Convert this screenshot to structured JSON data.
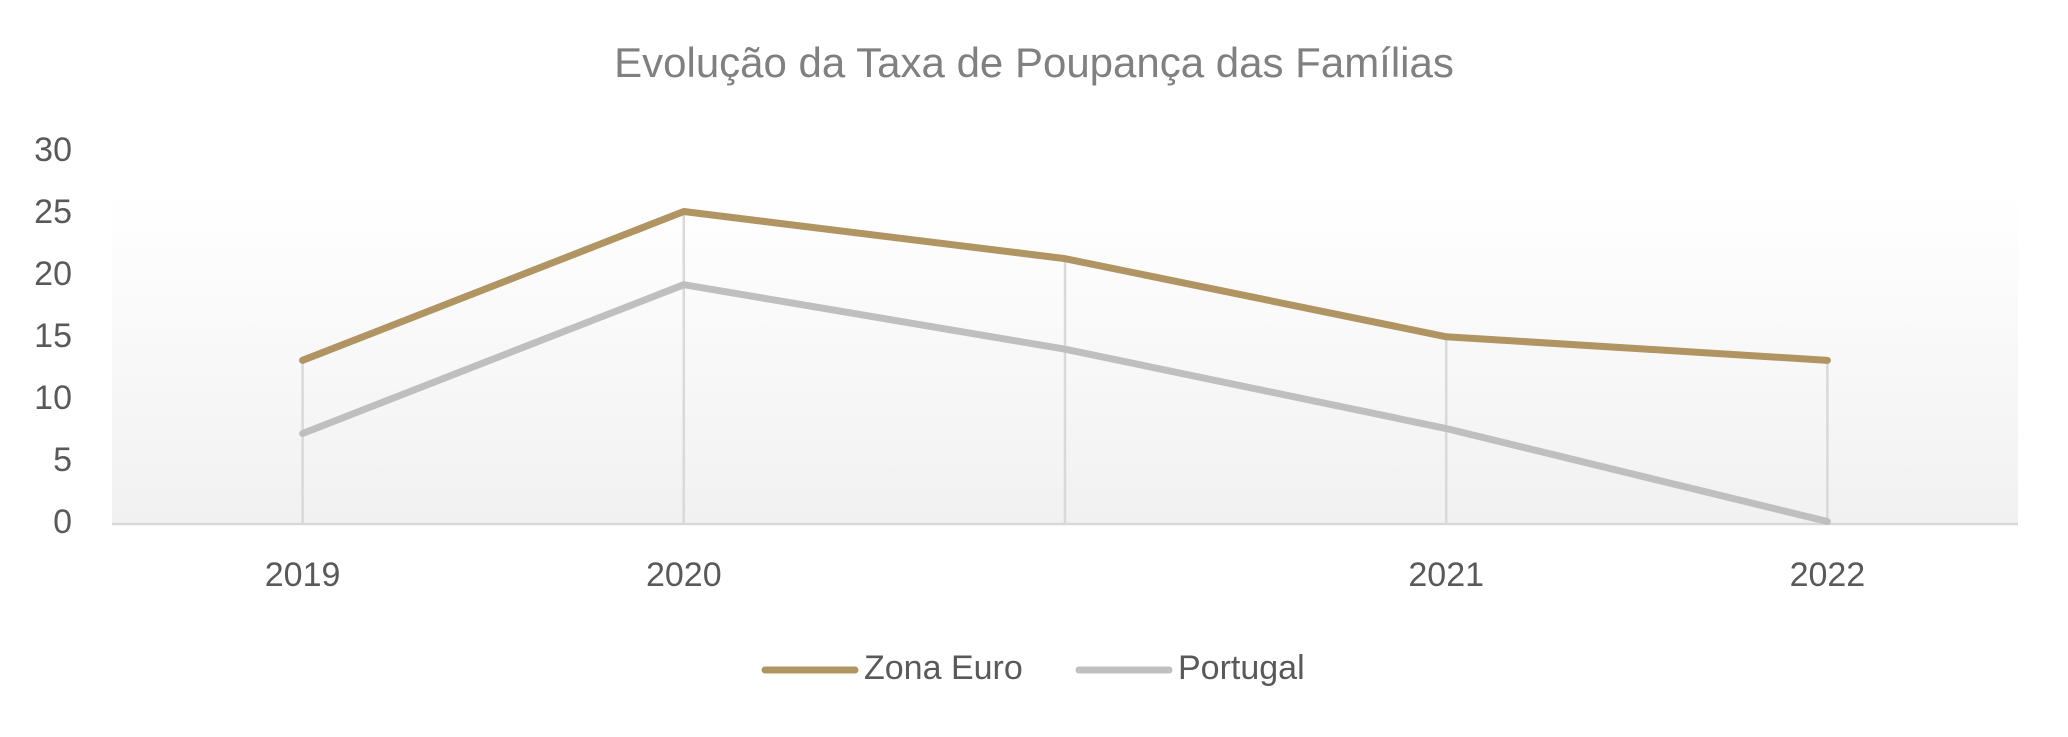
{
  "chart_data": {
    "type": "line",
    "title": "Evolução da Taxa de Poupança das Famílias",
    "categories": [
      "2019",
      "2020",
      null,
      "2021",
      "2022"
    ],
    "series": [
      {
        "name": "Zona Euro",
        "color": "#b09461",
        "values": [
          13.2,
          25.2,
          21.4,
          15.1,
          13.2
        ]
      },
      {
        "name": "Portugal",
        "color": "#bfbfbf",
        "values": [
          7.3,
          19.3,
          14.1,
          7.7,
          0.2
        ]
      }
    ],
    "ylim": [
      0,
      30
    ],
    "yticks": [
      0,
      5,
      10,
      15,
      20,
      25,
      30
    ],
    "drop_lines": true,
    "legend": "bottom"
  }
}
